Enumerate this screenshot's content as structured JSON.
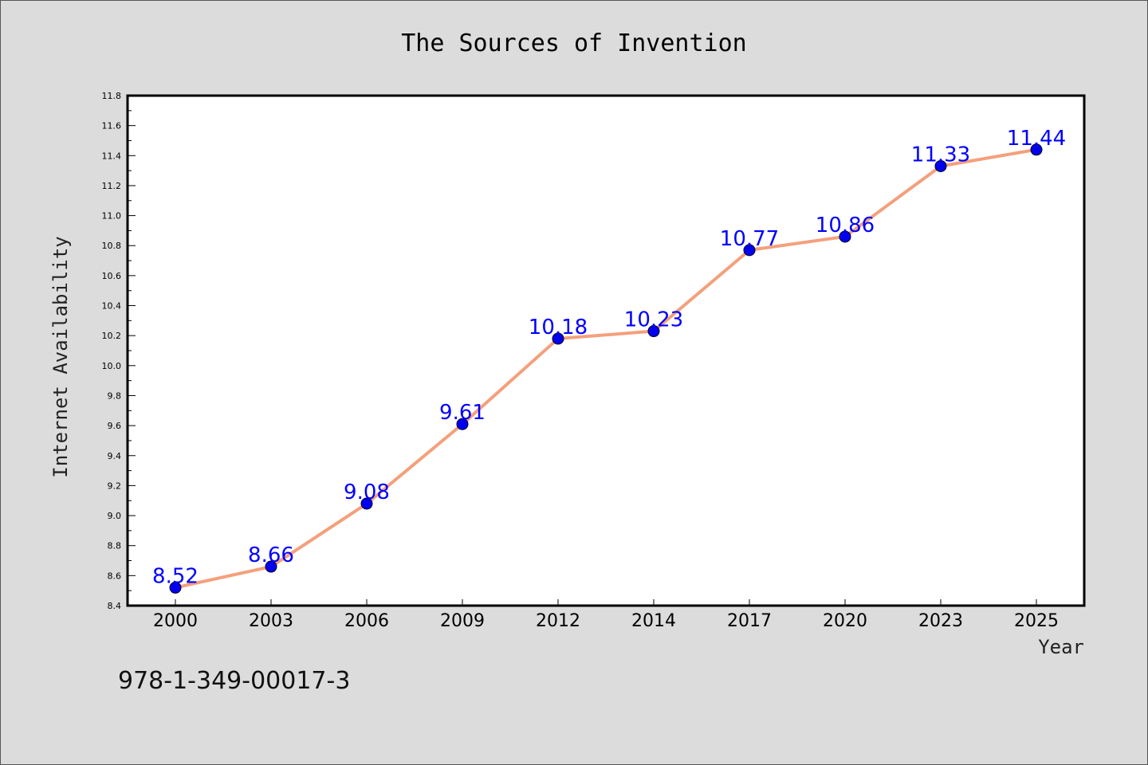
{
  "chart_data": {
    "type": "line",
    "title": "The Sources of Invention",
    "xlabel": "Year",
    "ylabel": "Internet Availability",
    "categories": [
      "2000",
      "2003",
      "2006",
      "2009",
      "2012",
      "2014",
      "2017",
      "2020",
      "2023",
      "2025"
    ],
    "series": [
      {
        "values": [
          8.52,
          8.66,
          9.08,
          9.61,
          10.18,
          10.23,
          10.77,
          10.86,
          11.33,
          11.44
        ],
        "data_labels": [
          "8.52",
          "8.66",
          "9.08",
          "9.61",
          "10.18",
          "10.23",
          "10.77",
          "10.86",
          "11.33",
          "11.44"
        ]
      }
    ],
    "ylim": [
      8.4,
      11.8
    ],
    "yticks": [
      "8.4",
      "8.6",
      "8.8",
      "9.0",
      "9.2",
      "9.4",
      "9.6",
      "9.8",
      "10.0",
      "10.2",
      "10.4",
      "10.6",
      "10.8",
      "11.0",
      "11.2",
      "11.4",
      "11.6",
      "11.8"
    ],
    "grid": false,
    "line_color": "#f4a07c",
    "marker_color": "#0000ee",
    "label_color": "#0000ff"
  },
  "annotation": "978-1-349-00017-3"
}
